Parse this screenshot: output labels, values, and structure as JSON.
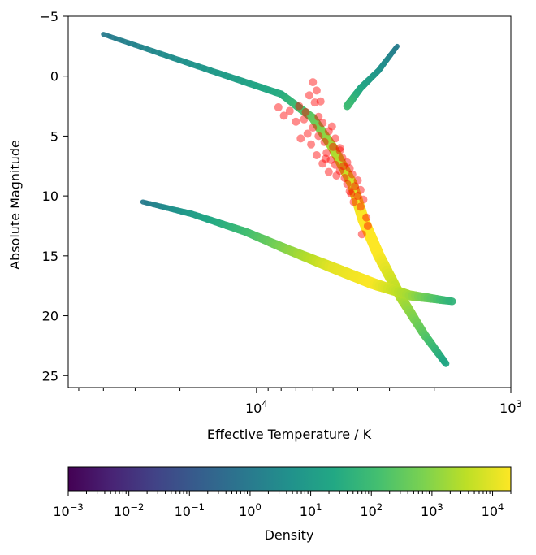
{
  "chart_data": {
    "type": "scatter",
    "xlabel": "Effective Temperature / K",
    "ylabel": "Absolute Magnitude",
    "x_scale": "log",
    "x_inverted": true,
    "x_tick_labels": [
      {
        "base": "10",
        "exp": "4",
        "value": 10000
      },
      {
        "base": "10",
        "exp": "3",
        "value": 1000
      }
    ],
    "xlim": [
      55000,
      1000
    ],
    "y_inverted": true,
    "ylim": [
      -5,
      26
    ],
    "y_ticks": [
      -5,
      0,
      5,
      10,
      15,
      20,
      25
    ],
    "colormap": "viridis",
    "scatter_color": "#ff0000",
    "colorbar": {
      "label": "Density",
      "orientation": "horizontal",
      "scale": "log",
      "range": [
        0.001,
        20000
      ],
      "ticks": [
        {
          "base": "10",
          "exp": "−3",
          "value": 0.001
        },
        {
          "base": "10",
          "exp": "−2",
          "value": 0.01
        },
        {
          "base": "10",
          "exp": "−1",
          "value": 0.1
        },
        {
          "base": "10",
          "exp": "0",
          "value": 1
        },
        {
          "base": "10",
          "exp": "1",
          "value": 10
        },
        {
          "base": "10",
          "exp": "2",
          "value": 100
        },
        {
          "base": "10",
          "exp": "3",
          "value": 1000
        },
        {
          "base": "10",
          "exp": "4",
          "value": 10000
        }
      ]
    },
    "series": [
      {
        "kind": "density-track",
        "density_range": [
          1,
          30000
        ],
        "path": [
          {
            "teff": 40000,
            "mag": -3.5,
            "density": 1
          },
          {
            "teff": 18000,
            "mag": -1.0,
            "density": 5
          },
          {
            "teff": 8000,
            "mag": 1.5,
            "density": 30
          },
          {
            "teff": 6000,
            "mag": 3.5,
            "density": 300
          },
          {
            "teff": 5000,
            "mag": 6.0,
            "density": 2000
          },
          {
            "teff": 4200,
            "mag": 9.0,
            "density": 6000
          },
          {
            "teff": 3800,
            "mag": 12.0,
            "density": 20000
          },
          {
            "teff": 3300,
            "mag": 15.0,
            "density": 20000
          },
          {
            "teff": 2700,
            "mag": 18.5,
            "density": 3000
          },
          {
            "teff": 2200,
            "mag": 21.5,
            "density": 300
          },
          {
            "teff": 1800,
            "mag": 24.0,
            "density": 20
          }
        ]
      },
      {
        "kind": "density-track",
        "density_range": [
          1,
          20000
        ],
        "path": [
          {
            "teff": 2800,
            "mag": -2.5,
            "density": 1
          },
          {
            "teff": 3300,
            "mag": -0.5,
            "density": 5
          },
          {
            "teff": 3900,
            "mag": 1.0,
            "density": 20
          },
          {
            "teff": 4400,
            "mag": 2.5,
            "density": 100
          }
        ]
      },
      {
        "kind": "density-track",
        "density_range": [
          1,
          20000
        ],
        "path": [
          {
            "teff": 28000,
            "mag": 10.5,
            "density": 1
          },
          {
            "teff": 18000,
            "mag": 11.5,
            "density": 10
          },
          {
            "teff": 11000,
            "mag": 13.0,
            "density": 100
          },
          {
            "teff": 7500,
            "mag": 14.5,
            "density": 1000
          },
          {
            "teff": 5000,
            "mag": 16.0,
            "density": 10000
          },
          {
            "teff": 3500,
            "mag": 17.3,
            "density": 20000
          },
          {
            "teff": 2500,
            "mag": 18.3,
            "density": 2000
          },
          {
            "teff": 1700,
            "mag": 18.8,
            "density": 50
          }
        ]
      },
      {
        "kind": "scatter",
        "points": [
          {
            "teff": 6000,
            "mag": 0.5
          },
          {
            "teff": 5800,
            "mag": 1.2
          },
          {
            "teff": 6200,
            "mag": 1.6
          },
          {
            "teff": 5600,
            "mag": 2.1
          },
          {
            "teff": 6800,
            "mag": 2.5
          },
          {
            "teff": 7400,
            "mag": 2.9
          },
          {
            "teff": 8200,
            "mag": 2.6
          },
          {
            "teff": 6400,
            "mag": 3.0
          },
          {
            "teff": 5700,
            "mag": 3.4
          },
          {
            "teff": 6500,
            "mag": 3.6
          },
          {
            "teff": 5500,
            "mag": 3.9
          },
          {
            "teff": 7000,
            "mag": 3.8
          },
          {
            "teff": 6000,
            "mag": 4.3
          },
          {
            "teff": 5200,
            "mag": 4.6
          },
          {
            "teff": 6300,
            "mag": 4.8
          },
          {
            "teff": 5700,
            "mag": 5.0
          },
          {
            "teff": 4900,
            "mag": 5.2
          },
          {
            "teff": 5400,
            "mag": 5.5
          },
          {
            "teff": 6100,
            "mag": 5.7
          },
          {
            "teff": 5000,
            "mag": 5.9
          },
          {
            "teff": 4700,
            "mag": 6.2
          },
          {
            "teff": 5300,
            "mag": 6.4
          },
          {
            "teff": 5800,
            "mag": 6.6
          },
          {
            "teff": 4600,
            "mag": 6.8
          },
          {
            "teff": 5100,
            "mag": 7.0
          },
          {
            "teff": 4400,
            "mag": 7.2
          },
          {
            "teff": 4900,
            "mag": 7.4
          },
          {
            "teff": 5500,
            "mag": 7.3
          },
          {
            "teff": 4300,
            "mag": 7.7
          },
          {
            "teff": 4700,
            "mag": 7.9
          },
          {
            "teff": 5200,
            "mag": 8.0
          },
          {
            "teff": 4200,
            "mag": 8.2
          },
          {
            "teff": 4500,
            "mag": 8.5
          },
          {
            "teff": 4000,
            "mag": 8.7
          },
          {
            "teff": 4400,
            "mag": 9.0
          },
          {
            "teff": 4100,
            "mag": 9.2
          },
          {
            "teff": 3900,
            "mag": 9.5
          },
          {
            "teff": 4300,
            "mag": 9.6
          },
          {
            "teff": 4000,
            "mag": 10.0
          },
          {
            "teff": 3800,
            "mag": 10.3
          },
          {
            "teff": 4150,
            "mag": 10.5
          },
          {
            "teff": 3900,
            "mag": 10.9
          },
          {
            "teff": 4700,
            "mag": 6.0
          },
          {
            "teff": 4550,
            "mag": 7.5
          },
          {
            "teff": 4850,
            "mag": 8.3
          },
          {
            "teff": 5050,
            "mag": 4.2
          },
          {
            "teff": 5350,
            "mag": 6.9
          },
          {
            "teff": 4250,
            "mag": 9.8
          },
          {
            "teff": 7800,
            "mag": 3.3
          },
          {
            "teff": 5900,
            "mag": 2.2
          },
          {
            "teff": 6700,
            "mag": 5.2
          },
          {
            "teff": 3700,
            "mag": 11.8
          },
          {
            "teff": 3650,
            "mag": 12.5
          },
          {
            "teff": 3850,
            "mag": 13.2
          }
        ]
      }
    ]
  }
}
